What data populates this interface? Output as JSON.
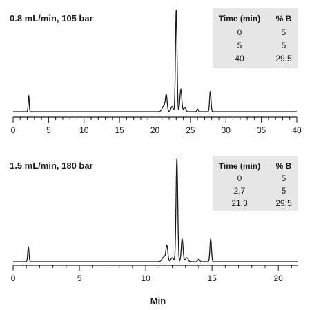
{
  "colors": {
    "trace": "#1a1a1a",
    "table_bg": "#e6e6e6",
    "axis": "#1a1a1a"
  },
  "chart_data": [
    {
      "type": "line",
      "title": "0.8 mL/min, 105 bar",
      "xlabel": "",
      "xlim": [
        0,
        40
      ],
      "x_ticks": [
        0,
        5,
        10,
        15,
        20,
        25,
        30,
        35,
        40
      ],
      "gradient_table": {
        "headers": [
          "Time (min)",
          "% B"
        ],
        "rows": [
          [
            "0",
            "5"
          ],
          [
            "5",
            "5"
          ],
          [
            "40",
            "29.5"
          ]
        ]
      },
      "baseline": 0.015,
      "peaks": [
        {
          "x": 2.2,
          "height": 0.16,
          "width": 0.07
        },
        {
          "x": 21.3,
          "height": 0.06,
          "width": 0.25
        },
        {
          "x": 21.6,
          "height": 0.14,
          "width": 0.12
        },
        {
          "x": 22.4,
          "height": 0.05,
          "width": 0.15
        },
        {
          "x": 23.0,
          "height": 1.0,
          "width": 0.11
        },
        {
          "x": 23.65,
          "height": 0.22,
          "width": 0.13
        },
        {
          "x": 24.2,
          "height": 0.04,
          "width": 0.15
        },
        {
          "x": 26.0,
          "height": 0.025,
          "width": 0.1
        },
        {
          "x": 27.8,
          "height": 0.2,
          "width": 0.1
        }
      ],
      "series": [
        {
          "values": []
        }
      ]
    },
    {
      "type": "line",
      "title": "1.5 mL/min, 180 bar",
      "xlabel": "Min",
      "xlim": [
        0,
        21.5
      ],
      "x_ticks": [
        0,
        5,
        10,
        15,
        20
      ],
      "gradient_table": {
        "headers": [
          "Time (min)",
          "% B"
        ],
        "rows": [
          [
            "0",
            "5"
          ],
          [
            "2.7",
            "5"
          ],
          [
            "21.3",
            "29.5"
          ]
        ]
      },
      "baseline": 0.015,
      "peaks": [
        {
          "x": 1.15,
          "height": 0.14,
          "width": 0.05
        },
        {
          "x": 11.4,
          "height": 0.05,
          "width": 0.15
        },
        {
          "x": 11.6,
          "height": 0.14,
          "width": 0.07
        },
        {
          "x": 12.0,
          "height": 0.04,
          "width": 0.1
        },
        {
          "x": 12.35,
          "height": 1.0,
          "width": 0.065
        },
        {
          "x": 12.75,
          "height": 0.22,
          "width": 0.07
        },
        {
          "x": 13.1,
          "height": 0.04,
          "width": 0.1
        },
        {
          "x": 14.0,
          "height": 0.025,
          "width": 0.07
        },
        {
          "x": 14.9,
          "height": 0.22,
          "width": 0.06
        }
      ],
      "series": [
        {
          "values": []
        }
      ]
    }
  ]
}
